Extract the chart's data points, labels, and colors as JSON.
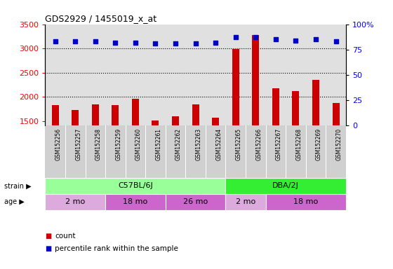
{
  "title": "GDS2929 / 1455019_x_at",
  "samples": [
    "GSM152256",
    "GSM152257",
    "GSM152258",
    "GSM152259",
    "GSM152260",
    "GSM152261",
    "GSM152262",
    "GSM152263",
    "GSM152264",
    "GSM152265",
    "GSM152266",
    "GSM152267",
    "GSM152268",
    "GSM152269",
    "GSM152270"
  ],
  "counts": [
    1820,
    1720,
    1840,
    1820,
    1960,
    1510,
    1600,
    1840,
    1565,
    2990,
    3270,
    2170,
    2110,
    2350,
    1870
  ],
  "percentile_ranks": [
    83,
    83,
    83,
    82,
    82,
    81,
    81,
    81,
    82,
    87,
    87,
    85,
    84,
    85,
    83
  ],
  "bar_color": "#cc0000",
  "dot_color": "#0000cc",
  "ylim_left": [
    1400,
    3500
  ],
  "ylim_right": [
    0,
    100
  ],
  "yticks_left": [
    1500,
    2000,
    2500,
    3000,
    3500
  ],
  "yticks_right": [
    0,
    25,
    50,
    75,
    100
  ],
  "strain_groups": [
    {
      "label": "C57BL/6J",
      "start": 0,
      "end": 9,
      "color": "#99ff99"
    },
    {
      "label": "DBA/2J",
      "start": 9,
      "end": 15,
      "color": "#33ee33"
    }
  ],
  "age_groups": [
    {
      "label": "2 mo",
      "start": 0,
      "end": 3,
      "color": "#ddaadd"
    },
    {
      "label": "18 mo",
      "start": 3,
      "end": 6,
      "color": "#cc66cc"
    },
    {
      "label": "26 mo",
      "start": 6,
      "end": 9,
      "color": "#cc66cc"
    },
    {
      "label": "2 mo",
      "start": 9,
      "end": 11,
      "color": "#ddaadd"
    },
    {
      "label": "18 mo",
      "start": 11,
      "end": 15,
      "color": "#cc66cc"
    }
  ],
  "legend_count_color": "#cc0000",
  "legend_pct_color": "#0000cc",
  "left_tick_color": "red",
  "right_tick_color": "blue",
  "bg_color": "#d8d8d8",
  "bar_baseline": 1400,
  "label_band_color": "#d0d0d0"
}
